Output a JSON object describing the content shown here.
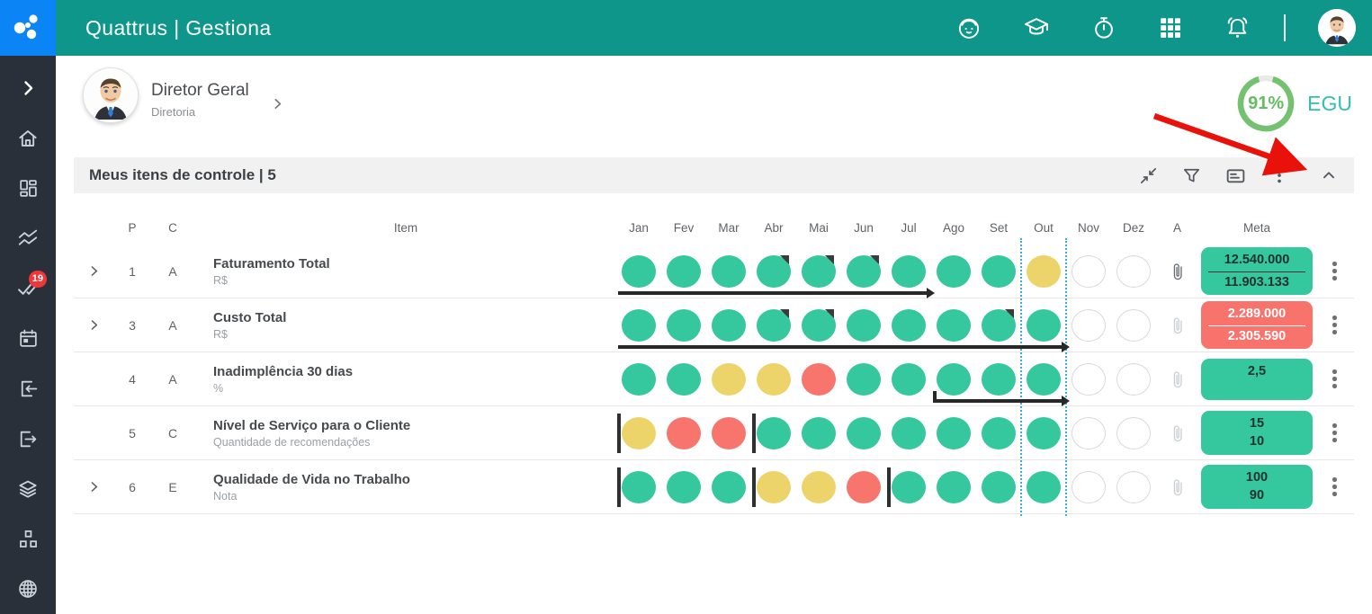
{
  "topbar": {
    "title": "Quattrus | Gestiona",
    "bg_color": "#0E968A",
    "logo_color": "#0B84F5",
    "icon_names": [
      "assistant-icon",
      "academy-icon",
      "timer-icon",
      "apps-icon",
      "notifications-icon",
      "user-avatar"
    ]
  },
  "sidebar": {
    "bg_color": "#2A3039",
    "items": [
      {
        "icon": "expand-chevron"
      },
      {
        "icon": "home"
      },
      {
        "icon": "dashboard"
      },
      {
        "icon": "indicators"
      },
      {
        "icon": "tasks",
        "badge": "19"
      },
      {
        "icon": "calendar"
      },
      {
        "icon": "sign-in"
      },
      {
        "icon": "sign-out"
      },
      {
        "icon": "layers"
      },
      {
        "icon": "org-chart"
      },
      {
        "icon": "globe"
      }
    ]
  },
  "profile": {
    "name": "Diretor Geral",
    "role": "Diretoria"
  },
  "gauge": {
    "percent": 91,
    "value_label": "91%",
    "label": "EGU",
    "ring_color": "#74C26F",
    "value_color": "#64BE60",
    "label_color": "#33BFAE"
  },
  "annotation": {
    "arrow_color": "#E8120B"
  },
  "panel": {
    "title": "Meus itens de controle | 5",
    "toolbar_icons": [
      "collapse-rows-icon",
      "filter-icon",
      "summary-card-icon",
      "panel-menu-icon",
      "collapse-panel-icon"
    ]
  },
  "table": {
    "headers": {
      "p": "P",
      "c": "C",
      "item": "Item",
      "a": "A",
      "meta": "Meta"
    },
    "months": [
      "Jan",
      "Fev",
      "Mar",
      "Abr",
      "Mai",
      "Jun",
      "Jul",
      "Ago",
      "Set",
      "Out",
      "Nov",
      "Dez"
    ],
    "current_month_index": 9,
    "status_colors": {
      "green": "#35C79D",
      "yellow": "#EDD46A",
      "red": "#F8756D",
      "empty": "#FFFFFF"
    },
    "meta_colors": {
      "success": "#35C79D",
      "danger": "#F7736C"
    },
    "rows": [
      {
        "expandable": true,
        "priority": "1",
        "class": "A",
        "item": "Faturamento Total",
        "unit": "R$",
        "statuses": [
          "green",
          "green",
          "green",
          "green",
          "green",
          "green",
          "green",
          "green",
          "green",
          "yellow",
          "empty",
          "empty"
        ],
        "flags": [
          3,
          4,
          5
        ],
        "separators": [],
        "accumulated": {
          "start": 0,
          "end": 6,
          "left_tick": false
        },
        "has_attachment": true,
        "meta": {
          "variant": "success",
          "divider": true,
          "values": [
            "12.540.000",
            "11.903.133"
          ]
        }
      },
      {
        "expandable": true,
        "priority": "3",
        "class": "A",
        "item": "Custo Total",
        "unit": "R$",
        "statuses": [
          "green",
          "green",
          "green",
          "green",
          "green",
          "green",
          "green",
          "green",
          "green",
          "green",
          "empty",
          "empty"
        ],
        "flags": [
          3,
          4,
          8
        ],
        "separators": [],
        "accumulated": {
          "start": 0,
          "end": 9,
          "left_tick": false
        },
        "has_attachment": false,
        "meta": {
          "variant": "danger",
          "divider": true,
          "values": [
            "2.289.000",
            "2.305.590"
          ]
        }
      },
      {
        "expandable": false,
        "priority": "4",
        "class": "A",
        "item": "Inadimplência 30 dias",
        "unit": "%",
        "statuses": [
          "green",
          "green",
          "yellow",
          "yellow",
          "red",
          "green",
          "green",
          "green",
          "green",
          "green",
          "empty",
          "empty"
        ],
        "flags": [],
        "separators": [],
        "accumulated": {
          "start": 7,
          "end": 9,
          "left_tick": true
        },
        "has_attachment": false,
        "meta": {
          "variant": "success",
          "divider": false,
          "values": [
            "2,5"
          ]
        }
      },
      {
        "expandable": false,
        "priority": "5",
        "class": "C",
        "item": "Nível de Serviço para o Cliente",
        "unit": "Quantidade de recomendações",
        "statuses": [
          "yellow",
          "red",
          "red",
          "green",
          "green",
          "green",
          "green",
          "green",
          "green",
          "green",
          "empty",
          "empty"
        ],
        "flags": [],
        "separators": [
          0,
          3
        ],
        "accumulated": null,
        "has_attachment": false,
        "meta": {
          "variant": "success",
          "divider": false,
          "values": [
            "15",
            "10"
          ]
        }
      },
      {
        "expandable": true,
        "priority": "6",
        "class": "E",
        "item": "Qualidade de Vida no Trabalho",
        "unit": "Nota",
        "statuses": [
          "green",
          "green",
          "green",
          "yellow",
          "yellow",
          "red",
          "green",
          "green",
          "green",
          "green",
          "empty",
          "empty"
        ],
        "flags": [],
        "separators": [
          0,
          3,
          6
        ],
        "accumulated": null,
        "has_attachment": false,
        "meta": {
          "variant": "success",
          "divider": false,
          "values": [
            "100",
            "90"
          ]
        }
      }
    ]
  }
}
